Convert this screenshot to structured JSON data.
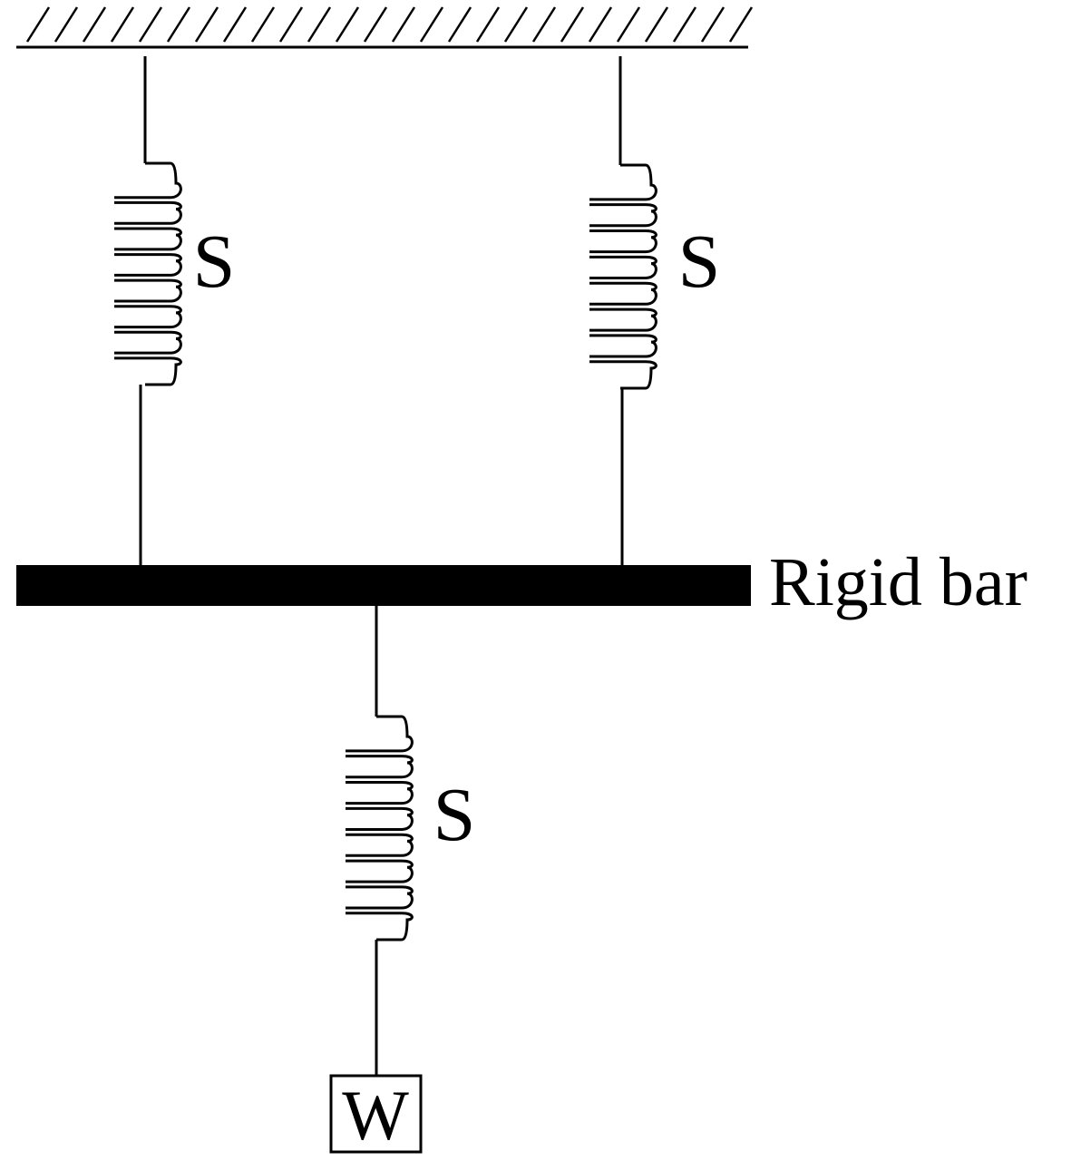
{
  "springs": {
    "left_label": "S",
    "right_label": "S",
    "lower_label": "S"
  },
  "bar": {
    "label": "Rigid bar"
  },
  "weight": {
    "label": "W"
  },
  "colors": {
    "ink": "#000000",
    "background": "#ffffff"
  }
}
